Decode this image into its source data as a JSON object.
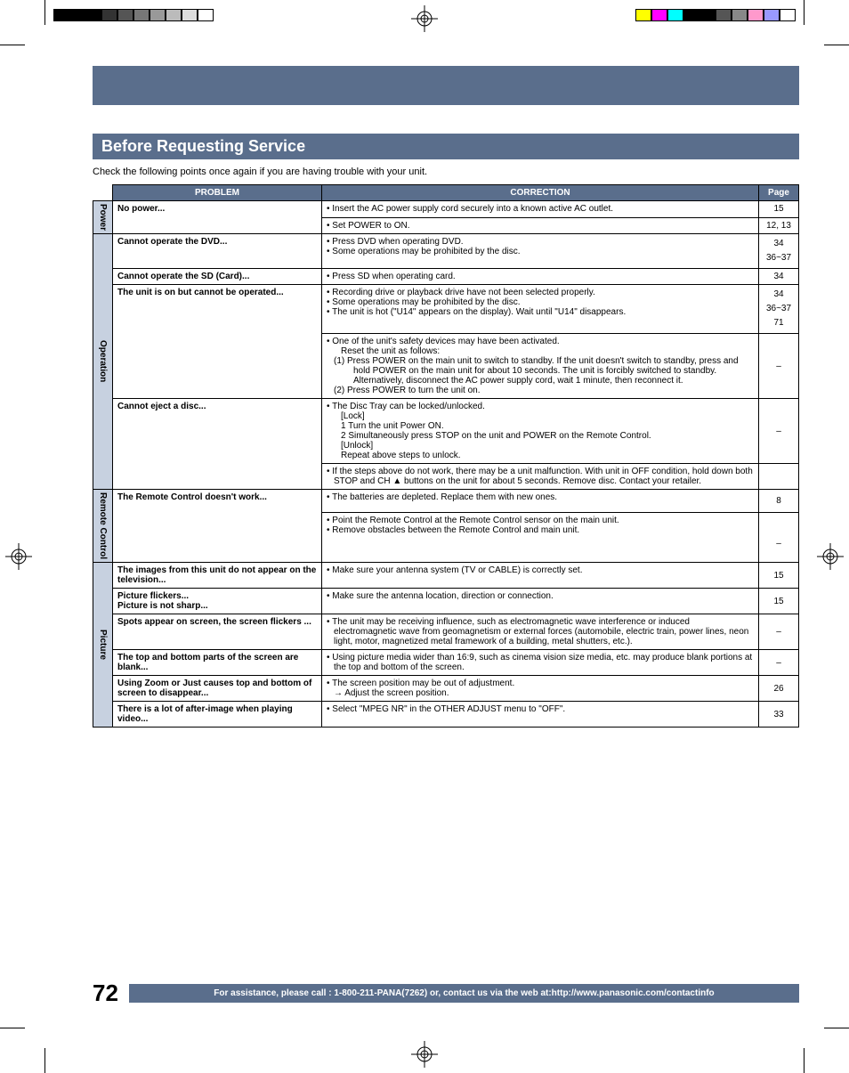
{
  "printer_marks": {
    "left_bars": [
      "#000000",
      "#000000",
      "#000000",
      "#333333",
      "#555555",
      "#777777",
      "#999999",
      "#bbbbbb",
      "#dddddd",
      "#ffffff"
    ],
    "right_bars": [
      "#ffff00",
      "#ff00ff",
      "#00ffff",
      "#000000",
      "#000000",
      "#555555",
      "#888888",
      "#ff99cc",
      "#9999ff",
      "#ffffff"
    ]
  },
  "section_title": "Before Requesting Service",
  "intro": "Check the following points once again if you are having trouble with your unit.",
  "headers": {
    "problem": "PROBLEM",
    "correction": "CORRECTION",
    "page": "Page"
  },
  "groups": [
    {
      "label": "Power",
      "rows": [
        {
          "problem": "No power...",
          "corrections": [
            {
              "bullets": [
                "Insert the AC power supply cord securely into a known active AC outlet."
              ],
              "page": "15"
            },
            {
              "bullets": [
                "Set POWER to ON."
              ],
              "page": "12, 13"
            }
          ]
        }
      ]
    },
    {
      "label": "Operation",
      "rows": [
        {
          "problem": "Cannot operate the DVD...",
          "corrections": [
            {
              "bullets": [
                "Press DVD when operating DVD.",
                "Some operations may be prohibited by the disc."
              ],
              "page_multi": [
                "34",
                "36~37"
              ]
            }
          ]
        },
        {
          "problem": "Cannot operate the SD (Card)...",
          "corrections": [
            {
              "bullets": [
                "Press SD when operating card."
              ],
              "page": "34"
            }
          ]
        },
        {
          "problem": "The unit is on but cannot be operated...",
          "corrections": [
            {
              "bullets": [
                "Recording drive or playback drive have not been selected properly.",
                "Some operations may be prohibited by the disc.",
                "The unit is hot (\"U14\" appears on the display). Wait until \"U14\" disappears."
              ],
              "page_multi": [
                "34",
                "36~37",
                "71"
              ]
            },
            {
              "bullets": [
                "One of the unit's safety devices may have been activated."
              ],
              "sub_lines": [
                "Reset the unit as follows:"
              ],
              "numbered": [
                "(1)   Press POWER on the main unit to switch to standby. If the unit doesn't switch to standby, press and hold POWER on the main unit for about 10 seconds. The unit is forcibly switched to standby. Alternatively, disconnect the AC power supply cord, wait 1 minute, then reconnect it.",
                "(2)   Press POWER to turn the unit on."
              ],
              "page": "–"
            }
          ]
        },
        {
          "problem": "Cannot eject a disc...",
          "corrections": [
            {
              "bullets": [
                "The Disc Tray can be locked/unlocked."
              ],
              "sub_lines": [
                "[Lock]",
                "1  Turn the unit Power ON.",
                "2  Simultaneously press STOP on the unit and POWER on the Remote Control.",
                "[Unlock]",
                "    Repeat above steps to unlock."
              ],
              "page": "–"
            },
            {
              "bullets": [
                "If the steps above do not work, there may be a unit malfunction. With unit in OFF condition, hold down both STOP and CH ▲ buttons on the unit for about 5 seconds. Remove disc. Contact your retailer."
              ],
              "page": ""
            }
          ]
        }
      ]
    },
    {
      "label": "Remote Control",
      "rows": [
        {
          "problem": "The Remote Control doesn't work...",
          "corrections": [
            {
              "bullets": [
                "The batteries are depleted. Replace them with new ones."
              ],
              "page": "8"
            },
            {
              "bullets": [
                "Point the Remote Control at the Remote Control sensor on the main unit.",
                "Remove obstacles between the Remote Control and main unit."
              ],
              "page_multi": [
                "",
                "–"
              ]
            }
          ]
        }
      ]
    },
    {
      "label": "Picture",
      "rows": [
        {
          "problem": "The images from this unit do not appear on the television...",
          "corrections": [
            {
              "bullets": [
                "Make sure your antenna system (TV or CABLE) is correctly set."
              ],
              "page": "15"
            }
          ]
        },
        {
          "problem": "Picture flickers...\nPicture is not sharp...",
          "corrections": [
            {
              "bullets": [
                "Make sure the antenna location, direction or connection."
              ],
              "page": "15"
            }
          ]
        },
        {
          "problem": "Spots appear on screen, the screen flickers ...",
          "corrections": [
            {
              "bullets": [
                "The unit may be receiving influence, such as electromagnetic wave interference or induced electromagnetic wave from geomagnetism or external forces (automobile, electric train, power lines, neon light, motor, magnetized metal framework of a building, metal shutters, etc.)."
              ],
              "page": "–"
            }
          ]
        },
        {
          "problem": "The top and bottom parts of the screen are blank...",
          "corrections": [
            {
              "bullets": [
                "Using picture media wider than 16:9, such as cinema vision size media, etc. may produce blank portions at the top and bottom of the screen."
              ],
              "page": "–"
            }
          ]
        },
        {
          "problem": "Using Zoom or Just causes top and bottom of screen to disappear...",
          "corrections": [
            {
              "bullets": [
                "The screen position may be out of adjustment.",
                "→ Adjust the screen position."
              ],
              "single_bullet_first_only": true,
              "page": "26"
            }
          ]
        },
        {
          "problem": "There is a lot of after-image when playing video...",
          "corrections": [
            {
              "bullets": [
                "Select \"MPEG NR\" in the OTHER ADJUST menu to \"OFF\"."
              ],
              "page": "33"
            }
          ]
        }
      ]
    }
  ],
  "footer": {
    "page_number": "72",
    "assist_text": "For assistance, please call : 1-800-211-PANA(7262) or, contact us via the web at:http://www.panasonic.com/contactinfo"
  },
  "colors": {
    "accent": "#5a6e8c",
    "side_bg": "#c7d1e0",
    "text": "#000000",
    "white": "#ffffff"
  }
}
